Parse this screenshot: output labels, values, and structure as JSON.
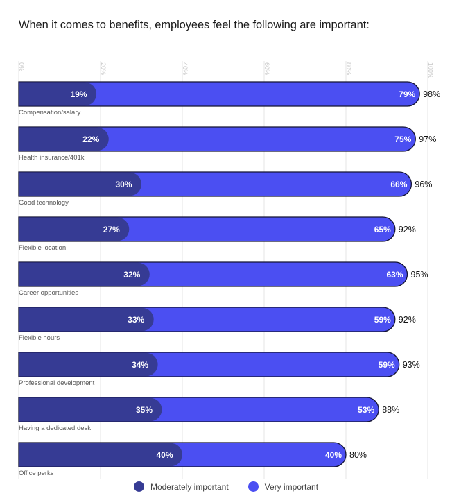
{
  "chart_data": {
    "type": "bar",
    "orientation": "horizontal",
    "stacked": true,
    "title": "When it comes to benefits, employees feel the following are important:",
    "xlim": [
      0,
      100
    ],
    "ticks": [
      "0%",
      "20%",
      "40%",
      "60%",
      "80%",
      "100%"
    ],
    "tick_values": [
      0,
      20,
      40,
      60,
      80,
      100
    ],
    "grid": true,
    "legend_position": "bottom",
    "categories": [
      "Compensation/salary",
      "Health insurance/401k",
      "Good technology",
      "Flexible location",
      "Career opportunities",
      "Flexible hours",
      "Professional development",
      "Having a dedicated desk",
      "Office perks"
    ],
    "series": [
      {
        "name": "Moderately important",
        "color": "#363b94",
        "values": [
          19,
          22,
          30,
          27,
          32,
          33,
          34,
          35,
          40
        ],
        "labels": [
          "19%",
          "22%",
          "30%",
          "27%",
          "32%",
          "33%",
          "34%",
          "35%",
          "40%"
        ]
      },
      {
        "name": "Very important",
        "color": "#4b4ff2",
        "values": [
          79,
          75,
          66,
          65,
          63,
          59,
          59,
          53,
          40
        ],
        "labels": [
          "79%",
          "75%",
          "66%",
          "65%",
          "63%",
          "59%",
          "59%",
          "53%",
          "40%"
        ]
      }
    ],
    "totals": [
      98,
      97,
      96,
      92,
      95,
      92,
      93,
      88,
      80
    ],
    "total_labels": [
      "98%",
      "97%",
      "96%",
      "92%",
      "95%",
      "92%",
      "93%",
      "88%",
      "80%"
    ]
  },
  "legend": {
    "items": [
      {
        "label": "Moderately important",
        "color": "#363b94"
      },
      {
        "label": "Very important",
        "color": "#4b4ff2"
      }
    ]
  }
}
